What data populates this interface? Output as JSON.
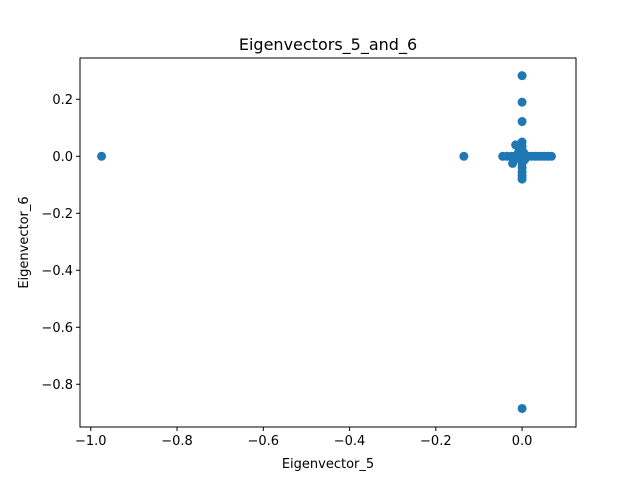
{
  "chart_data": {
    "type": "scatter",
    "title": "Eigenvectors_5_and_6",
    "xlabel": "Eigenvector_5",
    "ylabel": "Eigenvector_6",
    "xlim": [
      -1.025,
      0.125
    ],
    "ylim": [
      -0.95,
      0.345
    ],
    "xticks": [
      -1.0,
      -0.8,
      -0.6,
      -0.4,
      -0.2,
      0.0
    ],
    "xtick_labels": [
      "−1.0",
      "−0.8",
      "−0.6",
      "−0.4",
      "−0.2",
      "0.0"
    ],
    "yticks": [
      0.2,
      0.0,
      -0.2,
      -0.4,
      -0.6,
      -0.8
    ],
    "ytick_labels": [
      "0.2",
      "0.0",
      "−0.2",
      "−0.4",
      "−0.6",
      "−0.8"
    ],
    "grid": false,
    "color": "#1f77b4",
    "points": [
      {
        "x": -0.975,
        "y": 0.0
      },
      {
        "x": -0.135,
        "y": 0.0
      },
      {
        "x": 0.0,
        "y": 0.283
      },
      {
        "x": 0.0,
        "y": 0.19
      },
      {
        "x": 0.0,
        "y": 0.122
      },
      {
        "x": 0.0,
        "y": 0.05
      },
      {
        "x": 0.0,
        "y": 0.035
      },
      {
        "x": 0.0,
        "y": 0.022
      },
      {
        "x": 0.0,
        "y": 0.01
      },
      {
        "x": 0.0,
        "y": 0.0
      },
      {
        "x": 0.0,
        "y": -0.012
      },
      {
        "x": 0.0,
        "y": -0.025
      },
      {
        "x": 0.0,
        "y": -0.04
      },
      {
        "x": 0.0,
        "y": -0.055
      },
      {
        "x": 0.0,
        "y": -0.068
      },
      {
        "x": 0.0,
        "y": -0.08
      },
      {
        "x": 0.0,
        "y": -0.885
      },
      {
        "x": -0.045,
        "y": 0.0
      },
      {
        "x": -0.035,
        "y": 0.0
      },
      {
        "x": -0.025,
        "y": 0.0
      },
      {
        "x": -0.018,
        "y": 0.0
      },
      {
        "x": -0.01,
        "y": 0.0
      },
      {
        "x": 0.008,
        "y": 0.0
      },
      {
        "x": 0.015,
        "y": 0.0
      },
      {
        "x": 0.022,
        "y": 0.0
      },
      {
        "x": 0.03,
        "y": 0.0
      },
      {
        "x": 0.038,
        "y": 0.0
      },
      {
        "x": 0.045,
        "y": 0.0
      },
      {
        "x": 0.052,
        "y": 0.0
      },
      {
        "x": 0.06,
        "y": 0.0
      },
      {
        "x": 0.068,
        "y": 0.0
      },
      {
        "x": -0.015,
        "y": 0.04
      },
      {
        "x": -0.022,
        "y": -0.025
      },
      {
        "x": -0.008,
        "y": 0.015
      },
      {
        "x": 0.006,
        "y": -0.012
      },
      {
        "x": -0.005,
        "y": -0.01
      },
      {
        "x": 0.004,
        "y": 0.012
      }
    ]
  }
}
